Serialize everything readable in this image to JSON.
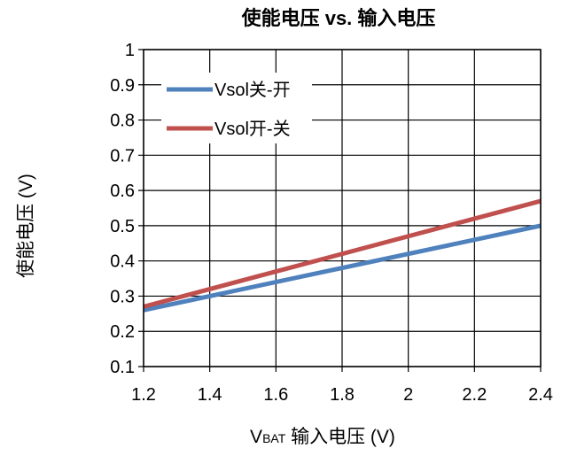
{
  "chart_data": {
    "type": "line",
    "title": "使能电压 vs. 输入电压",
    "xlabel": {
      "prefix": "V",
      "subscript": "BAT",
      "rest": " 输入电压 (V)"
    },
    "ylabel": "使能电压 (V)",
    "xlim": [
      1.2,
      2.4
    ],
    "ylim": [
      0.1,
      1.0
    ],
    "x_ticks": [
      "1.2",
      "1.4",
      "1.6",
      "1.8",
      "2",
      "2.2",
      "2.4"
    ],
    "y_ticks": [
      "1",
      "0.9",
      "0.8",
      "0.7",
      "0.6",
      "0.5",
      "0.4",
      "0.3",
      "0.2",
      "0.1"
    ],
    "grid": true,
    "legend_position": "top-left",
    "series": [
      {
        "name": "Vsol关-开",
        "color": "#4f81bd",
        "x": [
          1.2,
          2.4
        ],
        "y": [
          0.26,
          0.5
        ]
      },
      {
        "name": "Vsol开-关",
        "color": "#c0504d",
        "x": [
          1.2,
          2.4
        ],
        "y": [
          0.27,
          0.57
        ]
      }
    ]
  }
}
